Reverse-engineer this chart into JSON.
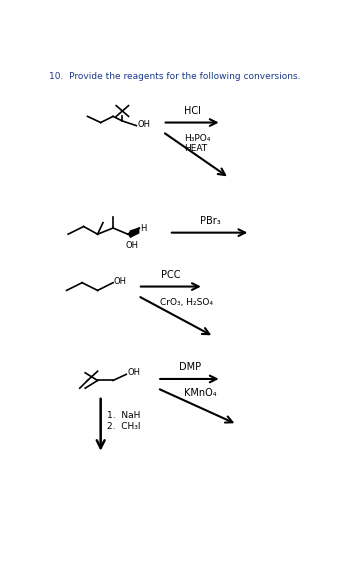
{
  "title": "10.  Provide the reagents for the following conversions.",
  "title_color": "#1a3a8c",
  "bg_color": "#ffffff",
  "text_color": "#000000",
  "r1_hcl": "HCl",
  "r1_h3po4": "H₃PO₄",
  "r1_heat": "HEAT",
  "r2_pbr3": "PBr₃",
  "r2_h": "H",
  "r2_oh": "OH",
  "r3_pcc": "PCC",
  "r3_cro3": "CrO₃, H₂SO₄",
  "r3_oh": "OH",
  "r4_dmp": "DMP",
  "r4_kmno4": "KMnO₄",
  "r4_oh": "OH",
  "r4_nah": "1.  NaH",
  "r4_ch3i": "2.  CH₃I"
}
